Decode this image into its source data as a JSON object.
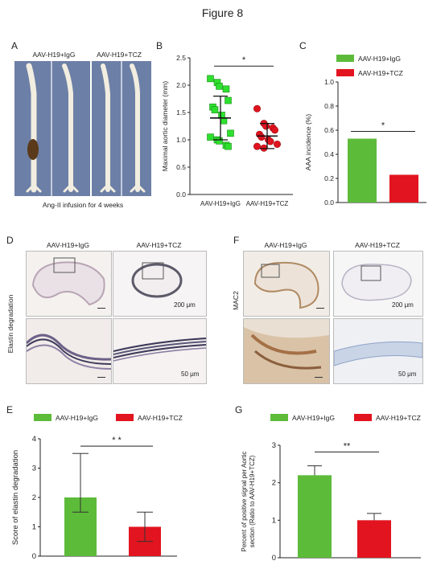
{
  "figure": {
    "title": "Figure 8"
  },
  "colors": {
    "igg": "#5dbb3a",
    "tcz": "#e2141f",
    "igg_point": "#2ee02e",
    "tcz_point": "#e0141f"
  },
  "panel_a": {
    "label": "A",
    "group_left": "AAV-H19+IgG",
    "group_right": "AAV-H19+TCZ",
    "caption": "Ang-II infusion for 4 weeks"
  },
  "panel_d": {
    "label": "D",
    "col_left": "AAV-H19+IgG",
    "col_right": "AAV-H19+TCZ",
    "row_label": "Elastin degradation",
    "scale_top": "200 μm",
    "scale_bottom": "50 μm"
  },
  "panel_f": {
    "label": "F",
    "col_left": "AAV-H19+IgG",
    "col_right": "AAV-H19+TCZ",
    "row_label": "MAC2",
    "scale_top": "200 μm",
    "scale_bottom": "50 μm"
  },
  "chart_data": [
    {
      "panel": "B",
      "type": "scatter",
      "ylabel": "Maximal aortic diameter (mm)",
      "categories": [
        "AAV-H19+IgG",
        "AAV-H19+TCZ"
      ],
      "ylim": [
        0,
        2.5
      ],
      "yticks": [
        "0.0",
        "0.5",
        "1.0",
        "1.5",
        "2.0",
        "2.5"
      ],
      "series": [
        {
          "values": [
            2.12,
            2.05,
            1.98,
            1.93,
            1.72,
            1.6,
            1.55,
            1.45,
            1.35,
            1.12,
            1.05,
            1.0,
            0.98,
            0.9,
            0.88
          ]
        },
        {
          "values": [
            1.57,
            1.3,
            1.25,
            1.22,
            1.18,
            1.1,
            1.05,
            1.0,
            0.97,
            0.92,
            0.88,
            0.85
          ]
        }
      ],
      "mean": [
        1.4,
        1.07
      ],
      "sd_low": [
        1.0,
        0.84
      ],
      "sd_high": [
        1.8,
        1.3
      ],
      "significance": "*"
    },
    {
      "panel": "C",
      "type": "bar",
      "ylabel": "AAA incidence (%)",
      "categories": [
        "AAV-H19+IgG",
        "AAV-H19+TCZ"
      ],
      "values": [
        0.53,
        0.23
      ],
      "ylim": [
        0,
        1.0
      ],
      "yticks": [
        "0.0",
        "0.2",
        "0.4",
        "0.6",
        "0.8",
        "1.0"
      ],
      "legend": [
        "AAV-H19+IgG",
        "AAV-H19+TCZ"
      ],
      "significance": "*"
    },
    {
      "panel": "E",
      "type": "bar",
      "ylabel": "Score of elastin degradation",
      "categories": [
        "AAV-H19+IgG",
        "AAV-H19+TCZ"
      ],
      "values": [
        2.0,
        1.0
      ],
      "err_low": [
        1.5,
        0.5
      ],
      "err_high": [
        3.5,
        1.5
      ],
      "ylim": [
        0,
        4
      ],
      "yticks": [
        "0",
        "1",
        "2",
        "3",
        "4"
      ],
      "legend": [
        "AAV-H19+IgG",
        "AAV-H19+TCZ"
      ],
      "significance": "* *"
    },
    {
      "panel": "G",
      "type": "bar",
      "ylabel": "Percent of positive signal per Aortic section (Ratio to AAV-H19+TCZ)",
      "ylabel_lines": [
        "Percent of positive signal per Aortic",
        "section (Ratio to AAV-H19+TCZ)"
      ],
      "categories": [
        "AAV-H19+IgG",
        "AAV-H19+TCZ"
      ],
      "values": [
        2.2,
        1.0
      ],
      "err_low": [
        2.2,
        1.0
      ],
      "err_high": [
        2.45,
        1.18
      ],
      "ylim": [
        0,
        3
      ],
      "yticks": [
        "0",
        "1",
        "2",
        "3"
      ],
      "legend": [
        "AAV-H19+IgG",
        "AAV-H19+TCZ"
      ],
      "significance": "**"
    }
  ]
}
